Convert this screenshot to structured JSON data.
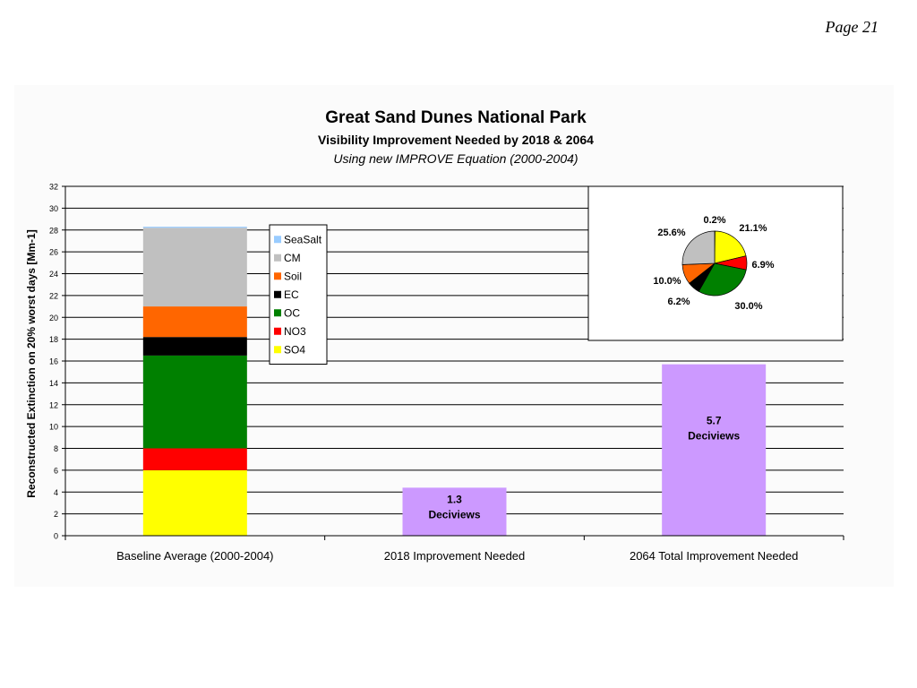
{
  "page": {
    "number_label": "Page 21"
  },
  "chart_data": {
    "type": "bar",
    "title": "Great Sand Dunes National Park",
    "subtitle": "Visibility Improvement Needed by 2018 & 2064",
    "subtitle2": "Using new IMPROVE Equation (2000-2004)",
    "xlabel": "",
    "ylabel": "Reconstructed Extinction on 20% worst days [Mm-1]",
    "ylim": [
      0,
      32
    ],
    "yticks": [
      0,
      2,
      4,
      6,
      8,
      10,
      12,
      14,
      16,
      18,
      20,
      22,
      24,
      26,
      28,
      30,
      32
    ],
    "grid": true,
    "categories": [
      "Baseline Average (2000-2004)",
      "2018 Improvement Needed",
      "2064 Total Improvement Needed"
    ],
    "stack": [
      {
        "name": "SO4",
        "color": "#ffff00",
        "value": 6.0
      },
      {
        "name": "NO3",
        "color": "#ff0000",
        "value": 2.0
      },
      {
        "name": "OC",
        "color": "#008000",
        "value": 8.5
      },
      {
        "name": "EC",
        "color": "#000000",
        "value": 1.7
      },
      {
        "name": "Soil",
        "color": "#ff6600",
        "value": 2.8
      },
      {
        "name": "CM",
        "color": "#c0c0c0",
        "value": 7.2
      },
      {
        "name": "SeaSalt",
        "color": "#99ccff",
        "value": 0.1
      }
    ],
    "improvement_bars": [
      {
        "category_index": 1,
        "value": 4.4,
        "color": "#cc99ff",
        "label_line1": "1.3",
        "label_line2": "Deciviews"
      },
      {
        "category_index": 2,
        "value": 15.7,
        "color": "#cc99ff",
        "label_line1": "5.7",
        "label_line2": "Deciviews"
      }
    ],
    "legend": {
      "placement": "inside-top-center",
      "entries": [
        {
          "name": "SeaSalt",
          "color": "#99ccff"
        },
        {
          "name": "CM",
          "color": "#c0c0c0"
        },
        {
          "name": "Soil",
          "color": "#ff6600"
        },
        {
          "name": "EC",
          "color": "#000000"
        },
        {
          "name": "OC",
          "color": "#008000"
        },
        {
          "name": "NO3",
          "color": "#ff0000"
        },
        {
          "name": "SO4",
          "color": "#ffff00"
        }
      ]
    },
    "pie": {
      "placement": "inset-top-right",
      "slices": [
        {
          "name": "SeaSalt",
          "label": "0.2%",
          "value": 0.2,
          "color": "#99ccff"
        },
        {
          "name": "SO4",
          "label": "21.1%",
          "value": 21.1,
          "color": "#ffff00"
        },
        {
          "name": "NO3",
          "label": "6.9%",
          "value": 6.9,
          "color": "#ff0000"
        },
        {
          "name": "OC",
          "label": "30.0%",
          "value": 30.0,
          "color": "#008000"
        },
        {
          "name": "EC",
          "label": "6.2%",
          "value": 6.2,
          "color": "#000000"
        },
        {
          "name": "Soil",
          "label": "10.0%",
          "value": 10.0,
          "color": "#ff6600"
        },
        {
          "name": "CM",
          "label": "25.6%",
          "value": 25.6,
          "color": "#c0c0c0"
        }
      ]
    }
  }
}
